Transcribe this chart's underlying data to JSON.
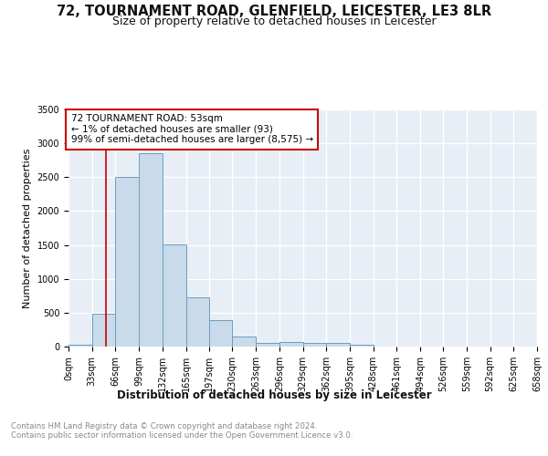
{
  "title": "72, TOURNAMENT ROAD, GLENFIELD, LEICESTER, LE3 8LR",
  "subtitle": "Size of property relative to detached houses in Leicester",
  "xlabel": "Distribution of detached houses by size in Leicester",
  "ylabel": "Number of detached properties",
  "bar_color": "#c9daea",
  "bar_edge_color": "#6a9fc0",
  "background_color": "#e8eef5",
  "grid_color": "#ffffff",
  "annotation_line1": "72 TOURNAMENT ROAD: 53sqm",
  "annotation_line2": "← 1% of detached houses are smaller (93)",
  "annotation_line3": "99% of semi-detached houses are larger (8,575) →",
  "red_line_x": 53,
  "bin_edges": [
    0,
    33,
    66,
    99,
    132,
    165,
    197,
    230,
    263,
    296,
    329,
    362,
    395,
    428,
    461,
    494,
    526,
    559,
    592,
    625,
    658
  ],
  "bin_counts": [
    30,
    480,
    2500,
    2850,
    1510,
    730,
    390,
    145,
    55,
    65,
    55,
    50,
    30,
    0,
    0,
    0,
    0,
    0,
    0,
    0
  ],
  "ylim": [
    0,
    3500
  ],
  "yticks": [
    0,
    500,
    1000,
    1500,
    2000,
    2500,
    3000,
    3500
  ],
  "footer_text": "Contains HM Land Registry data © Crown copyright and database right 2024.\nContains public sector information licensed under the Open Government Licence v3.0.",
  "annotation_box_color": "#ffffff",
  "annotation_box_edge": "#cc0000",
  "title_fontsize": 10.5,
  "subtitle_fontsize": 9,
  "tick_label_fontsize": 7,
  "ylabel_fontsize": 8,
  "xlabel_fontsize": 8.5,
  "footer_fontsize": 6.2,
  "annotation_fontsize": 7.5
}
